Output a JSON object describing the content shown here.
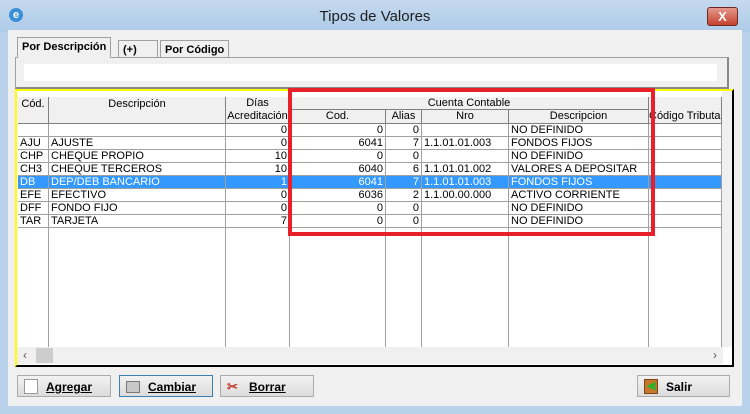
{
  "window": {
    "title": "Tipos de Valores",
    "close_label": "X"
  },
  "tabs": [
    {
      "label": "Por Descripción",
      "active": true
    },
    {
      "label": "(+)"
    },
    {
      "label": "Por Código"
    }
  ],
  "search": {
    "value": ""
  },
  "grid": {
    "headers": {
      "cod": "Cód.",
      "descripcion": "Descripción",
      "dias_top": "Días",
      "dias_bottom": "Acreditación",
      "cuenta_contable": "Cuenta Contable",
      "cc_cod": "Cod.",
      "alias": "Alias",
      "nro": "Nro",
      "cc_descripcion": "Descripcion",
      "codigo_tributario": "Código Tributario"
    },
    "rows": [
      {
        "cod": "",
        "descripcion": "",
        "dias": "0",
        "cc_cod": "0",
        "alias": "0",
        "nro": "",
        "cc_descripcion": "NO DEFINIDO",
        "codigo_tributario": ""
      },
      {
        "cod": "AJU",
        "descripcion": "AJUSTE",
        "dias": "0",
        "cc_cod": "6041",
        "alias": "7",
        "nro": "1.1.01.01.003",
        "cc_descripcion": "FONDOS FIJOS",
        "codigo_tributario": ""
      },
      {
        "cod": "CHP",
        "descripcion": "CHEQUE PROPIO",
        "dias": "10",
        "cc_cod": "0",
        "alias": "0",
        "nro": "",
        "cc_descripcion": "NO DEFINIDO",
        "codigo_tributario": ""
      },
      {
        "cod": "CH3",
        "descripcion": "CHEQUE TERCEROS",
        "dias": "10",
        "cc_cod": "6040",
        "alias": "6",
        "nro": "1.1.01.01.002",
        "cc_descripcion": "VALORES A DEPOSITAR",
        "codigo_tributario": ""
      },
      {
        "cod": "DB",
        "descripcion": "DEP/DEB BANCARIO",
        "dias": "1",
        "cc_cod": "6041",
        "alias": "7",
        "nro": "1.1.01.01.003",
        "cc_descripcion": "FONDOS FIJOS",
        "codigo_tributario": "",
        "selected": true
      },
      {
        "cod": "EFE",
        "descripcion": "EFECTIVO",
        "dias": "0",
        "cc_cod": "6036",
        "alias": "2",
        "nro": "1.1.00.00.000",
        "cc_descripcion": "ACTIVO CORRIENTE",
        "codigo_tributario": ""
      },
      {
        "cod": "DFF",
        "descripcion": "FONDO FIJO",
        "dias": "0",
        "cc_cod": "0",
        "alias": "0",
        "nro": "",
        "cc_descripcion": "NO DEFINIDO",
        "codigo_tributario": ""
      },
      {
        "cod": "TAR",
        "descripcion": "TARJETA",
        "dias": "7",
        "cc_cod": "0",
        "alias": "0",
        "nro": "",
        "cc_descripcion": "NO DEFINIDO",
        "codigo_tributario": ""
      }
    ]
  },
  "buttons": {
    "agregar": "Agregar",
    "cambiar": "Cambiar",
    "borrar": "Borrar",
    "salir": "Salir"
  },
  "colors": {
    "selection": "#3399ff",
    "highlight_box": "#e8202a",
    "grid_border": "#ffff00"
  }
}
